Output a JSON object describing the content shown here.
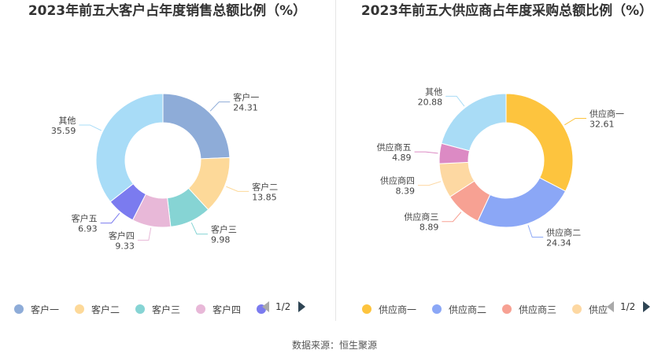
{
  "chart_data": [
    {
      "type": "pie",
      "title": "2023年前五大客户占年度销售总额比例（%）",
      "categories": [
        "客户一",
        "客户二",
        "客户三",
        "客户四",
        "客户五",
        "其他"
      ],
      "values": [
        24.31,
        13.85,
        9.98,
        9.33,
        6.93,
        35.59
      ],
      "labels": [
        "24.31",
        "13.85",
        "9.98",
        "9.33",
        "6.93",
        "35.59"
      ],
      "colors": [
        "#8eacd8",
        "#fdd999",
        "#86d4d4",
        "#e8b8d8",
        "#7b7bef",
        "#a8dcf7"
      ],
      "legend": {
        "visible_items": [
          "客户一",
          "客户二",
          "客户三",
          "客户四",
          ""
        ],
        "page": "1/2",
        "position": "bottom"
      }
    },
    {
      "type": "pie",
      "title": "2023年前五大供应商占年度采购总额比例（%）",
      "categories": [
        "供应商一",
        "供应商二",
        "供应商三",
        "供应商四",
        "供应商五",
        "其他"
      ],
      "values": [
        32.61,
        24.34,
        8.89,
        8.39,
        4.89,
        20.88
      ],
      "labels": [
        "32.61",
        "24.34",
        "8.89",
        "8.39",
        "4.89",
        "20.88"
      ],
      "colors": [
        "#fdc43e",
        "#8ba7f6",
        "#f7a193",
        "#fdd8a2",
        "#dc8ac4",
        "#a9dcf6"
      ],
      "legend": {
        "visible_items": [
          "供应商一",
          "供应商二",
          "供应商三",
          "供应"
        ],
        "page": "1/2",
        "position": "bottom"
      }
    }
  ],
  "footer": "数据来源：恒生聚源"
}
